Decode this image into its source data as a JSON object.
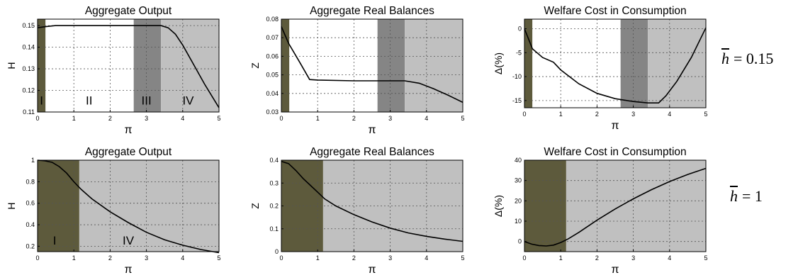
{
  "chart_data": [
    {
      "type": "line",
      "title": "Aggregate Output",
      "xlabel": "π",
      "ylabel": "H",
      "xlim": [
        0,
        5
      ],
      "ylim": [
        0.11,
        0.153
      ],
      "xticks": [
        "0",
        "1",
        "2",
        "3",
        "4",
        "5"
      ],
      "yticks": [
        {
          "value": 0.11,
          "label": "0.11"
        },
        {
          "value": 0.12,
          "label": "0.12"
        },
        {
          "value": 0.13,
          "label": "0.13"
        },
        {
          "value": 0.14,
          "label": "0.14"
        },
        {
          "value": 0.15,
          "label": "0.15"
        }
      ],
      "grid": true,
      "regions": [
        {
          "x0": 0,
          "x1": 0.22,
          "color": "#5d5a3c"
        },
        {
          "x0": 0.22,
          "x1": 2.65,
          "color": "#ffffff"
        },
        {
          "x0": 2.65,
          "x1": 3.4,
          "color": "#858585"
        },
        {
          "x0": 3.4,
          "x1": 5,
          "color": "#c0c0c0"
        }
      ],
      "region_labels": [
        {
          "text": "I",
          "x": 0.11,
          "y": 0.1135
        },
        {
          "text": "II",
          "x": 1.42,
          "y": 0.1135
        },
        {
          "text": "III",
          "x": 3.0,
          "y": 0.1135
        },
        {
          "text": "IV",
          "x": 4.15,
          "y": 0.1135
        }
      ],
      "series": [
        {
          "x": [
            0,
            0.2,
            0.5,
            1,
            1.5,
            2,
            2.5,
            3,
            3.4,
            3.6,
            3.8,
            4,
            4.3,
            4.6,
            5
          ],
          "y": [
            0.149,
            0.1495,
            0.15,
            0.15,
            0.15,
            0.15,
            0.15,
            0.15,
            0.15,
            0.149,
            0.146,
            0.141,
            0.132,
            0.123,
            0.112
          ]
        }
      ]
    },
    {
      "type": "line",
      "title": "Aggregate Real Balances",
      "xlabel": "π",
      "ylabel": "Z",
      "xlim": [
        0,
        5
      ],
      "ylim": [
        0.03,
        0.08
      ],
      "xticks": [
        "0",
        "1",
        "2",
        "3",
        "4",
        "5"
      ],
      "yticks": [
        {
          "value": 0.03,
          "label": "0.03"
        },
        {
          "value": 0.04,
          "label": "0.04"
        },
        {
          "value": 0.05,
          "label": "0.05"
        },
        {
          "value": 0.06,
          "label": "0.06"
        },
        {
          "value": 0.07,
          "label": "0.07"
        },
        {
          "value": 0.08,
          "label": "0.08"
        }
      ],
      "grid": true,
      "regions": [
        {
          "x0": 0,
          "x1": 0.22,
          "color": "#5d5a3c"
        },
        {
          "x0": 0.22,
          "x1": 2.65,
          "color": "#ffffff"
        },
        {
          "x0": 2.65,
          "x1": 3.4,
          "color": "#858585"
        },
        {
          "x0": 3.4,
          "x1": 5,
          "color": "#c0c0c0"
        }
      ],
      "region_labels": [],
      "series": [
        {
          "x": [
            0,
            0.2,
            0.5,
            0.78,
            1,
            2,
            3,
            3.4,
            3.8,
            4.2,
            4.6,
            5
          ],
          "y": [
            0.076,
            0.067,
            0.057,
            0.0475,
            0.0472,
            0.0468,
            0.0468,
            0.0468,
            0.0455,
            0.0425,
            0.039,
            0.0352
          ]
        }
      ]
    },
    {
      "type": "line",
      "title": "Welfare Cost in Consumption",
      "xlabel": "π",
      "ylabel": "Δ(%)",
      "xlim": [
        0,
        5
      ],
      "ylim": [
        -16.5,
        2
      ],
      "xticks": [
        "0",
        "1",
        "2",
        "3",
        "4",
        "5"
      ],
      "yticks": [
        {
          "value": -15,
          "label": "-15"
        },
        {
          "value": -10,
          "label": "-10"
        },
        {
          "value": -5,
          "label": "-5"
        },
        {
          "value": 0,
          "label": "0"
        }
      ],
      "grid": true,
      "regions": [
        {
          "x0": 0,
          "x1": 0.22,
          "color": "#5d5a3c"
        },
        {
          "x0": 0.22,
          "x1": 2.65,
          "color": "#ffffff"
        },
        {
          "x0": 2.65,
          "x1": 3.4,
          "color": "#858585"
        },
        {
          "x0": 3.4,
          "x1": 5,
          "color": "#c0c0c0"
        }
      ],
      "region_labels": [],
      "series": [
        {
          "x": [
            0,
            0.22,
            0.5,
            0.8,
            1,
            1.5,
            2,
            2.5,
            3,
            3.4,
            3.7,
            3.9,
            4.2,
            4.6,
            5
          ],
          "y": [
            0,
            -4.2,
            -6,
            -7,
            -8.6,
            -11.5,
            -13.5,
            -14.6,
            -15.2,
            -15.5,
            -15.5,
            -14,
            -11,
            -6,
            0.2
          ]
        }
      ]
    },
    {
      "type": "line",
      "title": "Aggregate Output",
      "xlabel": "π",
      "ylabel": "H",
      "xlim": [
        0,
        5
      ],
      "ylim": [
        0.15,
        1
      ],
      "xticks": [
        "0",
        "1",
        "2",
        "3",
        "4",
        "5"
      ],
      "yticks": [
        {
          "value": 0.2,
          "label": "0.2"
        },
        {
          "value": 0.4,
          "label": "0.4"
        },
        {
          "value": 0.6,
          "label": "0.6"
        },
        {
          "value": 0.8,
          "label": "0.8"
        },
        {
          "value": 1,
          "label": "1"
        }
      ],
      "grid": true,
      "regions": [
        {
          "x0": 0,
          "x1": 1.15,
          "color": "#5d5a3c"
        },
        {
          "x0": 1.15,
          "x1": 5,
          "color": "#c0c0c0"
        }
      ],
      "region_labels": [
        {
          "text": "I",
          "x": 0.47,
          "y": 0.215
        },
        {
          "text": "IV",
          "x": 2.5,
          "y": 0.215
        }
      ],
      "series": [
        {
          "x": [
            0,
            0.2,
            0.4,
            0.6,
            0.8,
            1,
            1.2,
            1.5,
            2,
            2.5,
            3,
            3.5,
            4,
            4.5,
            5
          ],
          "y": [
            1,
            0.995,
            0.98,
            0.94,
            0.88,
            0.8,
            0.73,
            0.64,
            0.52,
            0.42,
            0.33,
            0.26,
            0.21,
            0.17,
            0.14
          ]
        }
      ]
    },
    {
      "type": "line",
      "title": "Aggregate Real Balances",
      "xlabel": "π",
      "ylabel": "Z",
      "xlim": [
        0,
        5
      ],
      "ylim": [
        0,
        0.4
      ],
      "xticks": [
        "0",
        "1",
        "2",
        "3",
        "4",
        "5"
      ],
      "yticks": [
        {
          "value": 0,
          "label": "0"
        },
        {
          "value": 0.1,
          "label": "0.1"
        },
        {
          "value": 0.2,
          "label": "0.2"
        },
        {
          "value": 0.3,
          "label": "0.3"
        },
        {
          "value": 0.4,
          "label": "0.4"
        }
      ],
      "grid": true,
      "regions": [
        {
          "x0": 0,
          "x1": 1.15,
          "color": "#5d5a3c"
        },
        {
          "x0": 1.15,
          "x1": 5,
          "color": "#c0c0c0"
        }
      ],
      "region_labels": [],
      "series": [
        {
          "x": [
            0,
            0.2,
            0.4,
            0.6,
            0.8,
            1,
            1.2,
            1.5,
            2,
            2.5,
            3,
            3.5,
            4,
            4.5,
            5
          ],
          "y": [
            0.395,
            0.385,
            0.355,
            0.32,
            0.29,
            0.26,
            0.23,
            0.2,
            0.162,
            0.13,
            0.103,
            0.082,
            0.067,
            0.055,
            0.045
          ]
        }
      ]
    },
    {
      "type": "line",
      "title": "Welfare Cost in Consumption",
      "xlabel": "π",
      "ylabel": "Δ(%)",
      "xlim": [
        0,
        5
      ],
      "ylim": [
        -5,
        40
      ],
      "xticks": [
        "0",
        "1",
        "2",
        "3",
        "4",
        "5"
      ],
      "yticks": [
        {
          "value": 0,
          "label": "0"
        },
        {
          "value": 10,
          "label": "10"
        },
        {
          "value": 20,
          "label": "20"
        },
        {
          "value": 30,
          "label": "30"
        },
        {
          "value": 40,
          "label": "40"
        }
      ],
      "grid": true,
      "regions": [
        {
          "x0": 0,
          "x1": 1.15,
          "color": "#5d5a3c"
        },
        {
          "x0": 1.15,
          "x1": 5,
          "color": "#c0c0c0"
        }
      ],
      "region_labels": [],
      "series": [
        {
          "x": [
            0,
            0.2,
            0.4,
            0.6,
            0.8,
            1,
            1.2,
            1.5,
            2,
            2.5,
            3,
            3.5,
            4,
            4.5,
            5
          ],
          "y": [
            0,
            -1.3,
            -2,
            -2.2,
            -1.8,
            -0.5,
            1.2,
            4.5,
            10.5,
            16,
            21,
            25.5,
            29.5,
            33,
            36
          ]
        }
      ]
    }
  ],
  "annotations": [
    {
      "symbol": "h",
      "equals": "= 0.15"
    },
    {
      "symbol": "h",
      "equals": "= 1"
    }
  ]
}
